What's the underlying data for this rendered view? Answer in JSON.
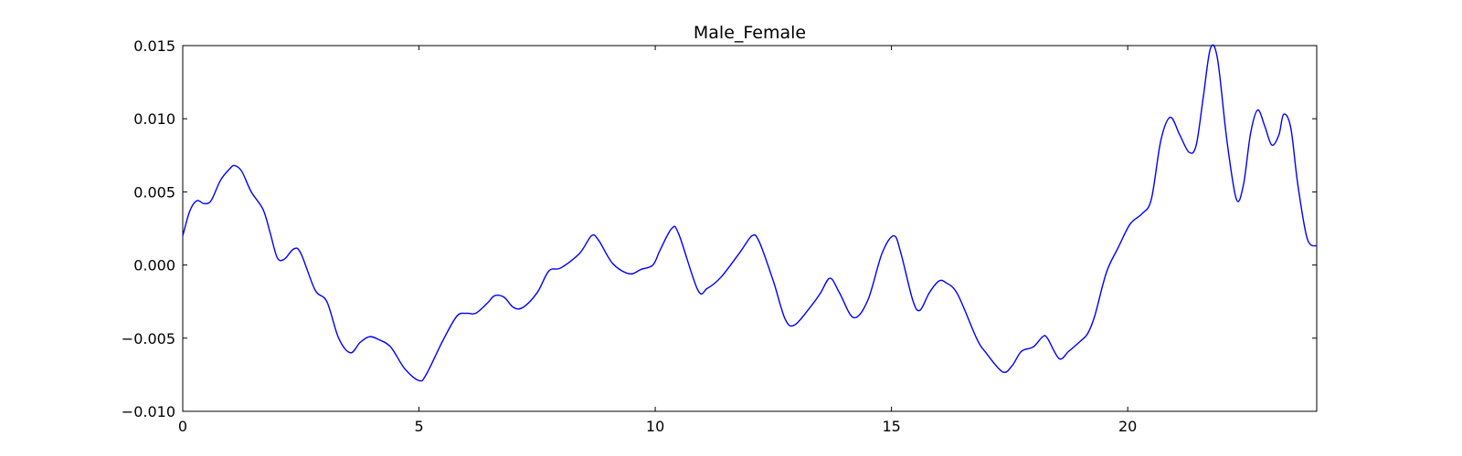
{
  "chart_data": {
    "type": "line",
    "title": "Male_Female",
    "xlabel": "",
    "ylabel": "",
    "xlim": [
      0,
      24
    ],
    "ylim": [
      -0.01,
      0.015
    ],
    "grid": false,
    "x_ticks": [
      0,
      5,
      10,
      15,
      20
    ],
    "x_tick_labels": [
      "0",
      "5",
      "10",
      "15",
      "20"
    ],
    "y_ticks": [
      -0.01,
      -0.005,
      0.0,
      0.005,
      0.01,
      0.015
    ],
    "y_tick_labels": [
      "−0.010",
      "−0.005",
      "0.000",
      "0.005",
      "0.010",
      "0.015"
    ],
    "series": [
      {
        "color": "#0000ff",
        "points": [
          [
            0.0,
            0.002
          ],
          [
            0.15,
            0.0037
          ],
          [
            0.3,
            0.0044
          ],
          [
            0.45,
            0.0042
          ],
          [
            0.6,
            0.0044
          ],
          [
            0.8,
            0.0058
          ],
          [
            1.0,
            0.0066
          ],
          [
            1.1,
            0.0068
          ],
          [
            1.25,
            0.0064
          ],
          [
            1.45,
            0.005
          ],
          [
            1.7,
            0.0038
          ],
          [
            1.85,
            0.0022
          ],
          [
            2.0,
            0.0005
          ],
          [
            2.15,
            0.0004
          ],
          [
            2.35,
            0.0011
          ],
          [
            2.5,
            0.0008
          ],
          [
            2.8,
            -0.0017
          ],
          [
            3.05,
            -0.0025
          ],
          [
            3.3,
            -0.005
          ],
          [
            3.55,
            -0.006
          ],
          [
            3.75,
            -0.0053
          ],
          [
            3.95,
            -0.0049
          ],
          [
            4.15,
            -0.0051
          ],
          [
            4.4,
            -0.0056
          ],
          [
            4.7,
            -0.0071
          ],
          [
            5.0,
            -0.0079
          ],
          [
            5.15,
            -0.0075
          ],
          [
            5.5,
            -0.0052
          ],
          [
            5.8,
            -0.0035
          ],
          [
            6.0,
            -0.0033
          ],
          [
            6.2,
            -0.0033
          ],
          [
            6.45,
            -0.0026
          ],
          [
            6.6,
            -0.0021
          ],
          [
            6.8,
            -0.0022
          ],
          [
            7.0,
            -0.0029
          ],
          [
            7.2,
            -0.0029
          ],
          [
            7.5,
            -0.0019
          ],
          [
            7.75,
            -0.0004
          ],
          [
            8.0,
            -0.0002
          ],
          [
            8.4,
            0.0008
          ],
          [
            8.65,
            0.002
          ],
          [
            8.8,
            0.0017
          ],
          [
            9.1,
            0.0001
          ],
          [
            9.45,
            -0.0006
          ],
          [
            9.7,
            -0.0003
          ],
          [
            9.95,
            0.0
          ],
          [
            10.1,
            0.001
          ],
          [
            10.35,
            0.0025
          ],
          [
            10.5,
            0.0021
          ],
          [
            10.9,
            -0.0017
          ],
          [
            11.1,
            -0.0016
          ],
          [
            11.4,
            -0.0008
          ],
          [
            11.8,
            0.0009
          ],
          [
            12.05,
            0.002
          ],
          [
            12.2,
            0.0016
          ],
          [
            12.5,
            -0.0011
          ],
          [
            12.75,
            -0.0037
          ],
          [
            12.95,
            -0.0041
          ],
          [
            13.3,
            -0.0028
          ],
          [
            13.5,
            -0.0019
          ],
          [
            13.7,
            -0.0009
          ],
          [
            13.9,
            -0.0019
          ],
          [
            14.2,
            -0.0036
          ],
          [
            14.5,
            -0.0024
          ],
          [
            14.8,
            0.0008
          ],
          [
            15.05,
            0.002
          ],
          [
            15.2,
            0.0008
          ],
          [
            15.45,
            -0.0024
          ],
          [
            15.6,
            -0.0031
          ],
          [
            15.8,
            -0.0019
          ],
          [
            16.0,
            -0.0011
          ],
          [
            16.15,
            -0.0012
          ],
          [
            16.4,
            -0.002
          ],
          [
            16.8,
            -0.005
          ],
          [
            17.0,
            -0.006
          ],
          [
            17.35,
            -0.0073
          ],
          [
            17.55,
            -0.0069
          ],
          [
            17.75,
            -0.0059
          ],
          [
            18.0,
            -0.0056
          ],
          [
            18.2,
            -0.0049
          ],
          [
            18.3,
            -0.005
          ],
          [
            18.55,
            -0.0064
          ],
          [
            18.75,
            -0.0059
          ],
          [
            19.0,
            -0.0052
          ],
          [
            19.15,
            -0.0047
          ],
          [
            19.3,
            -0.0035
          ],
          [
            19.55,
            -0.0005
          ],
          [
            19.8,
            0.0012
          ],
          [
            20.05,
            0.0028
          ],
          [
            20.3,
            0.0035
          ],
          [
            20.5,
            0.0045
          ],
          [
            20.7,
            0.0085
          ],
          [
            20.9,
            0.0101
          ],
          [
            21.1,
            0.0089
          ],
          [
            21.3,
            0.0077
          ],
          [
            21.45,
            0.0082
          ],
          [
            21.6,
            0.0115
          ],
          [
            21.75,
            0.0148
          ],
          [
            21.9,
            0.0141
          ],
          [
            22.1,
            0.0085
          ],
          [
            22.3,
            0.0045
          ],
          [
            22.45,
            0.0055
          ],
          [
            22.6,
            0.009
          ],
          [
            22.75,
            0.0106
          ],
          [
            22.9,
            0.0095
          ],
          [
            23.05,
            0.0082
          ],
          [
            23.2,
            0.0089
          ],
          [
            23.3,
            0.0103
          ],
          [
            23.45,
            0.0094
          ],
          [
            23.6,
            0.0055
          ],
          [
            23.8,
            0.0018
          ],
          [
            24.0,
            0.0013
          ]
        ]
      }
    ]
  }
}
